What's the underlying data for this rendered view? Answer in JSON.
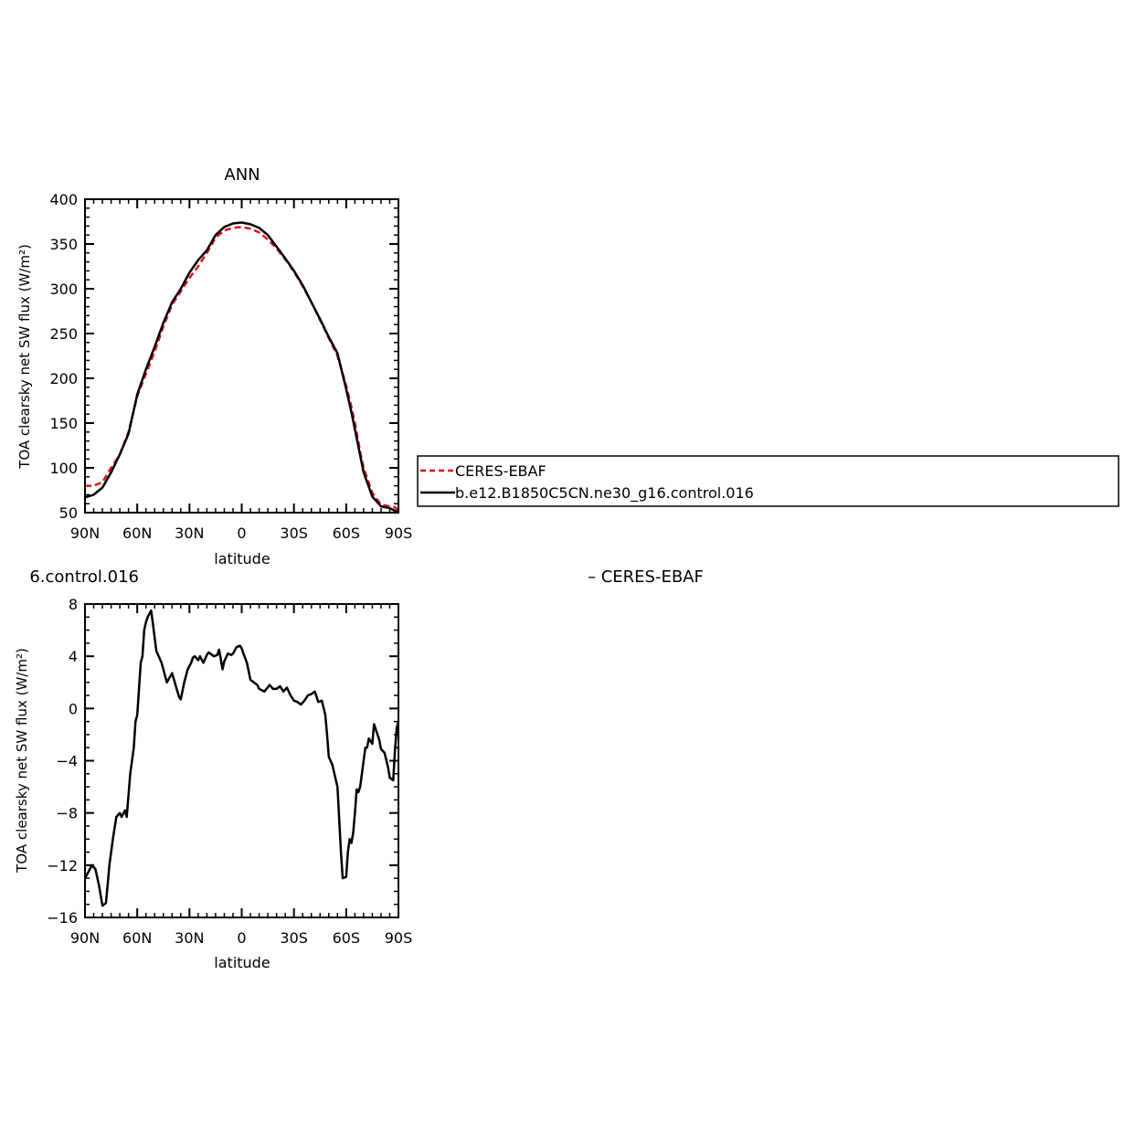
{
  "colors": {
    "observed": "#e0101a",
    "model": "#000000",
    "axis": "#000000"
  },
  "legend": {
    "entries": [
      {
        "label": "CERES-EBAF",
        "style": "dashed",
        "color": "#e0101a"
      },
      {
        "label": "b.e12.B1850C5CN.ne30_g16.control.016",
        "style": "solid",
        "color": "#000000"
      }
    ]
  },
  "chart_data": [
    {
      "type": "line",
      "title": "ANN",
      "xlabel": "latitude",
      "ylabel": "TOA clearsky net SW flux (W/m²)",
      "xlim": [
        90,
        -90
      ],
      "ylim": [
        50,
        400
      ],
      "x_ticks": [
        90,
        60,
        30,
        0,
        -30,
        -60,
        -90
      ],
      "x_tick_labels": [
        "90N",
        "60N",
        "30N",
        "0",
        "30S",
        "60S",
        "90S"
      ],
      "y_ticks": [
        50,
        100,
        150,
        200,
        250,
        300,
        350,
        400
      ],
      "y_tick_labels": [
        "50",
        "100",
        "150",
        "200",
        "250",
        "300",
        "350",
        "400"
      ],
      "series": [
        {
          "name": "CERES-EBAF",
          "style": "dashed",
          "x": [
            90,
            85,
            80,
            75,
            70,
            65,
            60,
            55,
            50,
            45,
            40,
            35,
            30,
            25,
            20,
            15,
            10,
            5,
            0,
            -5,
            -10,
            -15,
            -20,
            -25,
            -30,
            -35,
            -40,
            -45,
            -50,
            -55,
            -60,
            -63,
            -65,
            -68,
            -70,
            -75,
            -80,
            -85,
            -88,
            -90
          ],
          "y": [
            80,
            80,
            84,
            100,
            115,
            140,
            180,
            205,
            230,
            258,
            282,
            297,
            312,
            325,
            340,
            357,
            365,
            368,
            369,
            367,
            363,
            355,
            345,
            333,
            319,
            303,
            285,
            265,
            245,
            225,
            192,
            168,
            150,
            118,
            100,
            72,
            59,
            57,
            56,
            52
          ]
        },
        {
          "name": "b.e12.B1850C5CN.ne30_g16.control.016",
          "style": "solid",
          "x": [
            90,
            85,
            80,
            75,
            70,
            65,
            60,
            55,
            50,
            45,
            40,
            35,
            30,
            25,
            20,
            15,
            10,
            5,
            0,
            -5,
            -10,
            -15,
            -20,
            -25,
            -30,
            -35,
            -40,
            -45,
            -50,
            -55,
            -60,
            -63,
            -65,
            -68,
            -70,
            -75,
            -80,
            -85,
            -88,
            -90
          ],
          "y": [
            67,
            70,
            78,
            95,
            115,
            138,
            182,
            210,
            235,
            262,
            285,
            300,
            318,
            332,
            343,
            360,
            369,
            373,
            374,
            372,
            368,
            360,
            347,
            334,
            320,
            304,
            285,
            266,
            246,
            228,
            188,
            162,
            143,
            114,
            95,
            68,
            57,
            55,
            52,
            50
          ]
        }
      ]
    },
    {
      "type": "line",
      "title_right": "6.control.016",
      "title_center": "– CERES-EBAF",
      "xlabel": "latitude",
      "ylabel": "TOA clearsky net SW flux (W/m²)",
      "xlim": [
        90,
        -90
      ],
      "ylim": [
        -16,
        8
      ],
      "x_ticks": [
        90,
        60,
        30,
        0,
        -30,
        -60,
        -90
      ],
      "x_tick_labels": [
        "90N",
        "60N",
        "30N",
        "0",
        "30S",
        "60S",
        "90S"
      ],
      "y_ticks": [
        -16,
        -12,
        -8,
        -4,
        0,
        4,
        8
      ],
      "y_tick_labels": [
        "−16",
        "−12",
        "−8",
        "−4",
        "0",
        "4",
        "8"
      ],
      "series": [
        {
          "name": "difference",
          "style": "solid",
          "x": [
            90,
            88,
            86,
            84,
            82,
            80,
            78,
            77,
            76,
            74,
            72,
            70,
            69,
            67,
            66,
            64,
            62,
            61,
            60,
            58,
            57,
            56,
            55,
            54,
            52,
            51,
            49,
            46,
            43,
            40,
            38,
            36,
            35,
            33,
            31,
            29,
            28,
            27,
            25,
            24,
            22,
            20,
            19,
            16,
            14,
            13,
            12,
            11,
            10,
            8,
            6,
            5,
            3,
            1,
            0,
            -1,
            -3,
            -5,
            -7,
            -9,
            -10,
            -13,
            -16,
            -18,
            -20,
            -22,
            -24,
            -26,
            -28,
            -30,
            -32,
            -34,
            -36,
            -38,
            -40,
            -42,
            -44,
            -46,
            -48,
            -49,
            -50,
            -52,
            -55,
            -57,
            -58,
            -60,
            -61,
            -62,
            -63,
            -64,
            -65,
            -66,
            -67,
            -68,
            -69,
            -71,
            -72,
            -73,
            -75,
            -76,
            -77,
            -79,
            -80,
            -82,
            -84,
            -85,
            -87,
            -88,
            -89,
            -90
          ],
          "y": [
            -13,
            -12.5,
            -12,
            -12.3,
            -13.5,
            -15.1,
            -14.9,
            -13.5,
            -12,
            -10,
            -8.3,
            -8,
            -8.3,
            -7.8,
            -8.3,
            -5,
            -3,
            -1,
            -0.5,
            3.5,
            4,
            6,
            6.6,
            7,
            7.5,
            6.5,
            4.4,
            3.5,
            2,
            2.7,
            1.8,
            0.9,
            0.7,
            2,
            3,
            3.5,
            3.9,
            4,
            3.7,
            4,
            3.5,
            4.1,
            4.3,
            4,
            4.1,
            4.5,
            3.8,
            3,
            3.6,
            4.2,
            4.1,
            4.2,
            4.7,
            4.8,
            4.6,
            4.2,
            3.5,
            2.2,
            2,
            1.8,
            1.5,
            1.3,
            1.8,
            1.5,
            1.5,
            1.7,
            1.3,
            1.6,
            1,
            0.6,
            0.5,
            0.3,
            0.6,
            1,
            1.1,
            1.3,
            0.5,
            0.6,
            -0.5,
            -2,
            -3.7,
            -4.3,
            -6,
            -11,
            -13,
            -12.9,
            -11,
            -10,
            -10.3,
            -9.5,
            -8,
            -6.2,
            -6.4,
            -6,
            -5,
            -3,
            -3,
            -2.3,
            -2.7,
            -1.2,
            -1.6,
            -2.4,
            -3.1,
            -3.4,
            -4.5,
            -5.3,
            -5.5,
            -3.2,
            -1.5,
            -1
          ]
        }
      ]
    }
  ]
}
